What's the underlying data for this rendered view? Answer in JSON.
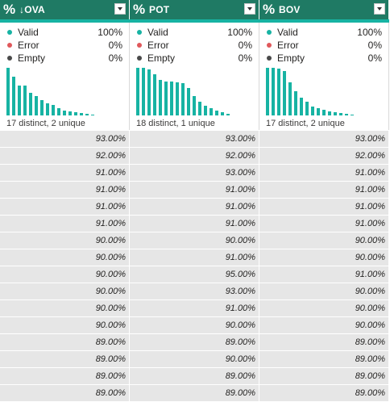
{
  "columns": [
    {
      "type_icon": "%",
      "name": "↓OVA",
      "stats": [
        {
          "label": "Valid",
          "value": "100%",
          "color": "#17b3a3"
        },
        {
          "label": "Error",
          "value": "0%",
          "color": "#e0585b"
        },
        {
          "label": "Empty",
          "value": "0%",
          "color": "#4a4a4a"
        }
      ],
      "histogram": [
        1.0,
        0.81,
        0.63,
        0.63,
        0.47,
        0.4,
        0.33,
        0.26,
        0.22,
        0.15,
        0.11,
        0.09,
        0.07,
        0.05,
        0.03,
        0.02
      ],
      "distinct_text": "17 distinct, 2 unique",
      "values": [
        "93.00%",
        "92.00%",
        "91.00%",
        "91.00%",
        "91.00%",
        "91.00%",
        "90.00%",
        "90.00%",
        "90.00%",
        "90.00%",
        "90.00%",
        "90.00%",
        "89.00%",
        "89.00%",
        "89.00%",
        "89.00%"
      ]
    },
    {
      "type_icon": "%",
      "name": "POT",
      "stats": [
        {
          "label": "Valid",
          "value": "100%",
          "color": "#17b3a3"
        },
        {
          "label": "Error",
          "value": "0%",
          "color": "#e0585b"
        },
        {
          "label": "Empty",
          "value": "0%",
          "color": "#4a4a4a"
        }
      ],
      "histogram": [
        1.0,
        1.0,
        0.96,
        0.86,
        0.74,
        0.72,
        0.72,
        0.7,
        0.67,
        0.57,
        0.4,
        0.28,
        0.21,
        0.15,
        0.1,
        0.07,
        0.04
      ],
      "distinct_text": "18 distinct, 1 unique",
      "values": [
        "93.00%",
        "92.00%",
        "93.00%",
        "91.00%",
        "91.00%",
        "91.00%",
        "90.00%",
        "91.00%",
        "95.00%",
        "93.00%",
        "91.00%",
        "90.00%",
        "89.00%",
        "90.00%",
        "89.00%",
        "89.00%"
      ]
    },
    {
      "type_icon": "%",
      "name": "BOV",
      "stats": [
        {
          "label": "Valid",
          "value": "100%",
          "color": "#17b3a3"
        },
        {
          "label": "Error",
          "value": "0%",
          "color": "#e0585b"
        },
        {
          "label": "Empty",
          "value": "0%",
          "color": "#4a4a4a"
        }
      ],
      "histogram": [
        1.0,
        1.0,
        0.98,
        0.93,
        0.69,
        0.5,
        0.38,
        0.28,
        0.19,
        0.16,
        0.12,
        0.09,
        0.07,
        0.05,
        0.03,
        0.02
      ],
      "distinct_text": "17 distinct, 2 unique",
      "values": [
        "93.00%",
        "92.00%",
        "91.00%",
        "91.00%",
        "91.00%",
        "91.00%",
        "90.00%",
        "90.00%",
        "91.00%",
        "90.00%",
        "90.00%",
        "90.00%",
        "89.00%",
        "89.00%",
        "89.00%",
        "89.00%"
      ]
    }
  ]
}
